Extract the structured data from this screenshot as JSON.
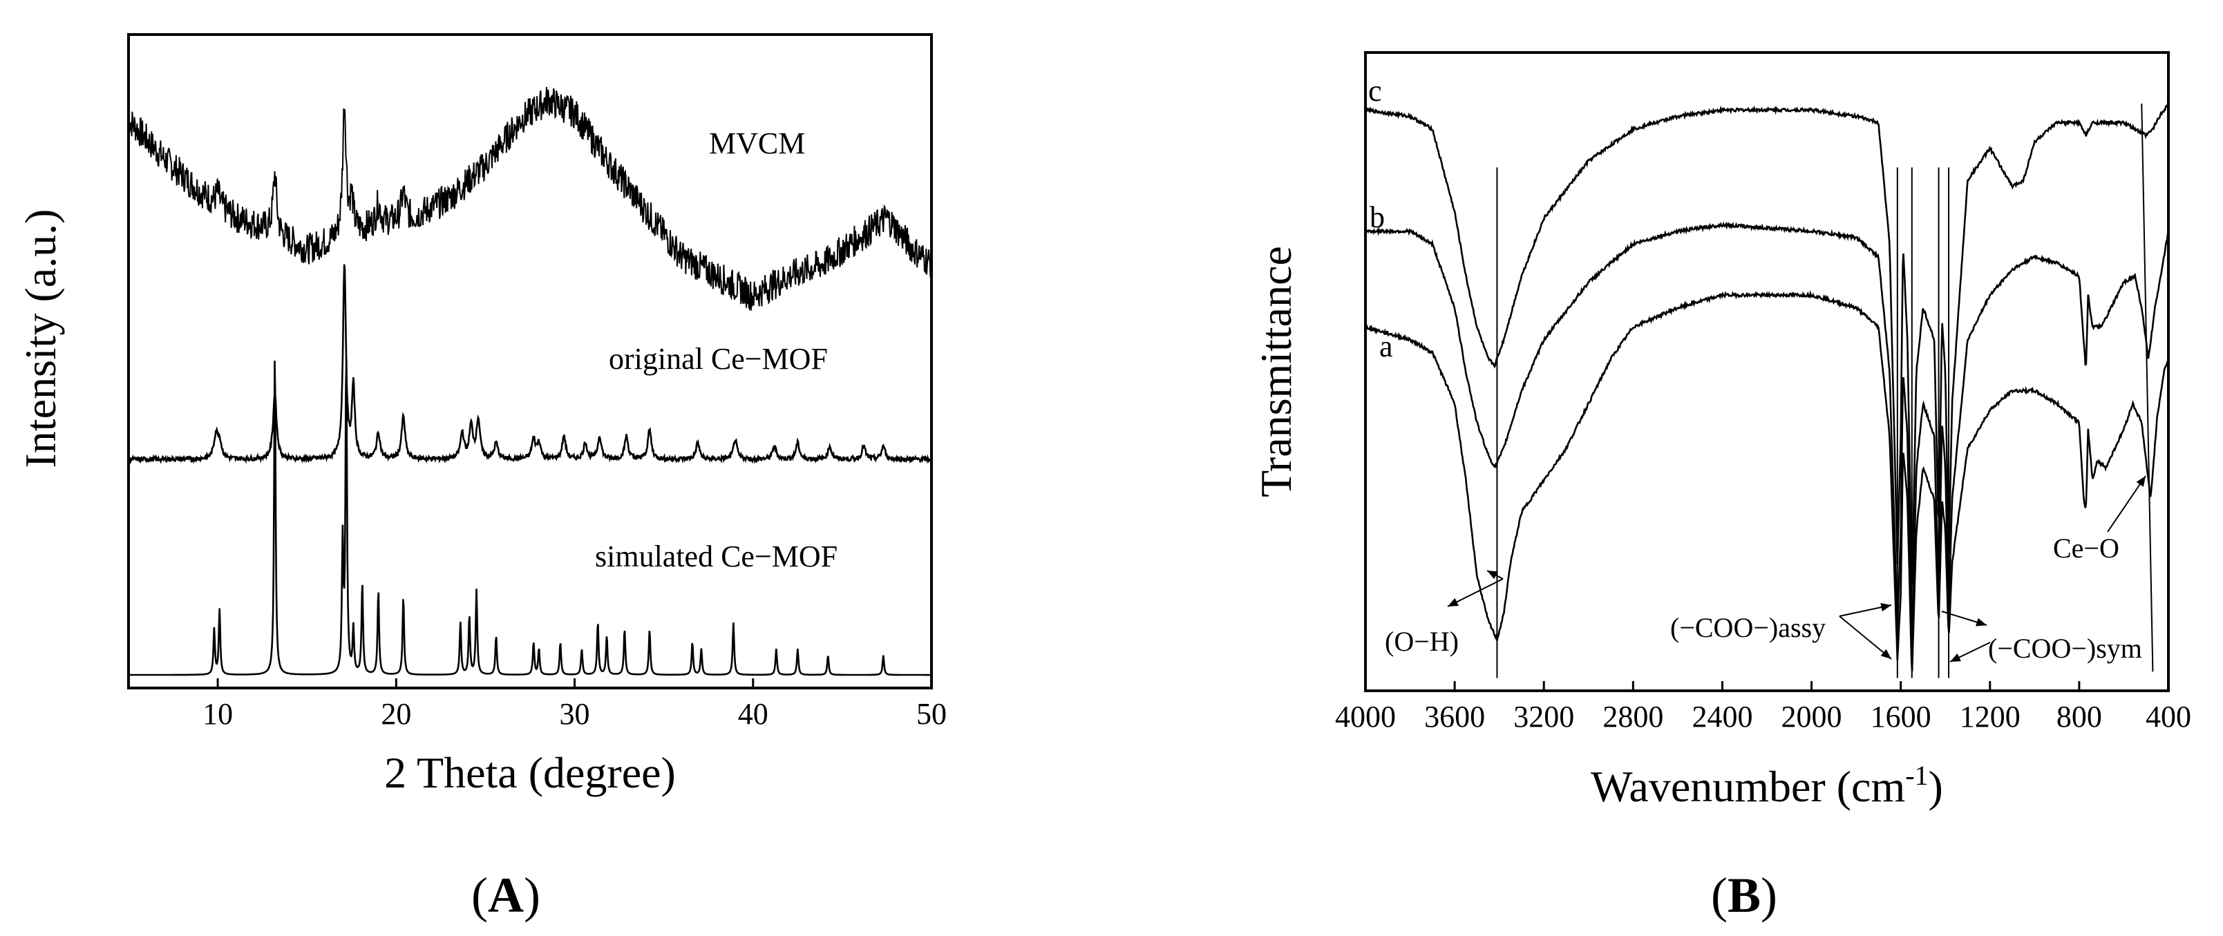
{
  "chart_data": [
    {
      "panel": "A",
      "type": "line",
      "title": "",
      "xlabel": "2 Theta (degree)",
      "ylabel": "Intensity (a.u.)",
      "xlim": [
        5,
        50
      ],
      "xticks": [
        10,
        20,
        30,
        40,
        50
      ],
      "ylim": [
        0,
        100
      ],
      "yticks_shown": false,
      "series": [
        {
          "name": "MVCM",
          "label": "MVCM",
          "noise": 2.4,
          "baseline": [
            [
              5,
              87
            ],
            [
              7,
              81
            ],
            [
              9,
              76
            ],
            [
              11,
              72
            ],
            [
              13,
              70
            ],
            [
              15,
              67
            ],
            [
              17,
              69
            ],
            [
              19,
              71
            ],
            [
              21,
              72
            ],
            [
              23,
              75
            ],
            [
              25,
              80
            ],
            [
              27,
              87
            ],
            [
              28.5,
              90
            ],
            [
              30,
              88
            ],
            [
              32,
              80
            ],
            [
              34,
              73
            ],
            [
              36,
              66
            ],
            [
              38,
              63
            ],
            [
              40,
              60
            ],
            [
              42,
              63
            ],
            [
              44,
              65
            ],
            [
              46,
              69
            ],
            [
              47.5,
              72
            ],
            [
              49,
              67
            ],
            [
              50,
              65
            ]
          ],
          "peaks": [
            [
              10,
              2,
              0.12
            ],
            [
              13.2,
              9,
              0.12
            ],
            [
              17.1,
              20,
              0.12
            ],
            [
              17.5,
              5,
              0.12
            ],
            [
              19.0,
              3,
              0.15
            ],
            [
              20.4,
              4,
              0.15
            ]
          ]
        },
        {
          "name": "original Ce-MOF",
          "label": "original Ce−MOF",
          "noise": 0.35,
          "baseline": [
            [
              5,
              35
            ],
            [
              50,
              35
            ]
          ],
          "peaks": [
            [
              9.9,
              3.5,
              0.14
            ],
            [
              10.1,
              2.5,
              0.14
            ],
            [
              13.2,
              10,
              0.12
            ],
            [
              17.1,
              30,
              0.1
            ],
            [
              17.6,
              11,
              0.1
            ],
            [
              19.0,
              4,
              0.12
            ],
            [
              20.4,
              6.5,
              0.12
            ],
            [
              23.7,
              4,
              0.12
            ],
            [
              24.2,
              5,
              0.12
            ],
            [
              24.6,
              6,
              0.12
            ],
            [
              25.6,
              2.5,
              0.12
            ],
            [
              27.7,
              3,
              0.12
            ],
            [
              28.0,
              2.5,
              0.12
            ],
            [
              29.4,
              3.5,
              0.12
            ],
            [
              30.6,
              2.5,
              0.12
            ],
            [
              31.4,
              3.5,
              0.12
            ],
            [
              32.9,
              3.5,
              0.12
            ],
            [
              34.2,
              4.5,
              0.12
            ],
            [
              36.9,
              2.5,
              0.12
            ],
            [
              39.0,
              3,
              0.12
            ],
            [
              41.2,
              2,
              0.12
            ],
            [
              42.5,
              2.5,
              0.12
            ],
            [
              44.3,
              2,
              0.12
            ],
            [
              46.2,
              2,
              0.12
            ],
            [
              47.3,
              2,
              0.12
            ]
          ]
        },
        {
          "name": "simulated Ce-MOF",
          "label": "simulated Ce−MOF",
          "noise": 0,
          "baseline": [
            [
              5,
              2
            ],
            [
              50,
              2
            ]
          ],
          "peaks": [
            [
              9.8,
              7,
              0.05
            ],
            [
              10.1,
              10,
              0.05
            ],
            [
              13.2,
              50,
              0.05
            ],
            [
              17.0,
              20,
              0.05
            ],
            [
              17.2,
              49,
              0.05
            ],
            [
              17.6,
              7,
              0.05
            ],
            [
              18.1,
              14,
              0.05
            ],
            [
              19.0,
              13,
              0.05
            ],
            [
              20.4,
              12,
              0.05
            ],
            [
              23.6,
              8,
              0.05
            ],
            [
              24.1,
              9,
              0.05
            ],
            [
              24.5,
              13,
              0.05
            ],
            [
              25.6,
              6,
              0.05
            ],
            [
              27.7,
              5,
              0.05
            ],
            [
              28.0,
              4,
              0.05
            ],
            [
              29.2,
              5,
              0.05
            ],
            [
              30.4,
              4,
              0.05
            ],
            [
              31.3,
              8,
              0.05
            ],
            [
              31.8,
              6,
              0.05
            ],
            [
              32.8,
              7,
              0.05
            ],
            [
              34.2,
              7,
              0.05
            ],
            [
              36.6,
              5,
              0.05
            ],
            [
              37.1,
              4,
              0.05
            ],
            [
              38.9,
              8,
              0.05
            ],
            [
              41.3,
              4,
              0.05
            ],
            [
              42.5,
              4,
              0.05
            ],
            [
              44.2,
              3,
              0.05
            ],
            [
              47.3,
              3,
              0.05
            ]
          ]
        }
      ]
    },
    {
      "panel": "B",
      "type": "line",
      "title": "",
      "xlabel": "Wavenumber (cm",
      "xlabel_sup": "-1",
      "xlabel_end": ")",
      "ylabel": "Transmittance",
      "xlim": [
        4000,
        400
      ],
      "xticks": [
        4000,
        3600,
        3200,
        2800,
        2400,
        2000,
        1600,
        1200,
        800,
        400
      ],
      "ylim": [
        0,
        100
      ],
      "yticks_shown": false,
      "series": [
        {
          "name": "a",
          "label": "a",
          "points": [
            [
              4000,
              57
            ],
            [
              3800,
              55
            ],
            [
              3700,
              53
            ],
            [
              3600,
              45
            ],
            [
              3550,
              33
            ],
            [
              3500,
              18
            ],
            [
              3450,
              11
            ],
            [
              3410,
              8
            ],
            [
              3380,
              12
            ],
            [
              3350,
              20
            ],
            [
              3300,
              28
            ],
            [
              3200,
              33
            ],
            [
              3100,
              38
            ],
            [
              3000,
              45
            ],
            [
              2900,
              52
            ],
            [
              2800,
              57
            ],
            [
              2600,
              60
            ],
            [
              2400,
              62
            ],
            [
              2000,
              62
            ],
            [
              1800,
              60
            ],
            [
              1700,
              57
            ],
            [
              1650,
              40
            ],
            [
              1615,
              5
            ],
            [
              1600,
              15
            ],
            [
              1590,
              38
            ],
            [
              1570,
              30
            ],
            [
              1550,
              2
            ],
            [
              1530,
              25
            ],
            [
              1500,
              35
            ],
            [
              1450,
              30
            ],
            [
              1430,
              10
            ],
            [
              1415,
              30
            ],
            [
              1400,
              25
            ],
            [
              1385,
              8
            ],
            [
              1370,
              20
            ],
            [
              1300,
              38
            ],
            [
              1200,
              44
            ],
            [
              1100,
              47
            ],
            [
              1000,
              47
            ],
            [
              900,
              45
            ],
            [
              800,
              42
            ],
            [
              780,
              30
            ],
            [
              770,
              28
            ],
            [
              760,
              41
            ],
            [
              740,
              33
            ],
            [
              720,
              36
            ],
            [
              680,
              35
            ],
            [
              600,
              41
            ],
            [
              560,
              45
            ],
            [
              520,
              42
            ],
            [
              480,
              30
            ],
            [
              450,
              43
            ],
            [
              420,
              50
            ],
            [
              400,
              52
            ]
          ]
        },
        {
          "name": "b",
          "label": "b",
          "points": [
            [
              4000,
              72
            ],
            [
              3800,
              72
            ],
            [
              3700,
              70
            ],
            [
              3600,
              60
            ],
            [
              3550,
              50
            ],
            [
              3500,
              42
            ],
            [
              3450,
              37
            ],
            [
              3420,
              35
            ],
            [
              3380,
              38
            ],
            [
              3300,
              47
            ],
            [
              3200,
              55
            ],
            [
              3000,
              64
            ],
            [
              2800,
              70
            ],
            [
              2600,
              72
            ],
            [
              2400,
              73
            ],
            [
              2000,
              72
            ],
            [
              1800,
              71
            ],
            [
              1700,
              68
            ],
            [
              1650,
              50
            ],
            [
              1615,
              10
            ],
            [
              1600,
              25
            ],
            [
              1590,
              50
            ],
            [
              1570,
              40
            ],
            [
              1550,
              5
            ],
            [
              1530,
              35
            ],
            [
              1500,
              45
            ],
            [
              1450,
              40
            ],
            [
              1430,
              15
            ],
            [
              1415,
              42
            ],
            [
              1400,
              35
            ],
            [
              1385,
              12
            ],
            [
              1370,
              30
            ],
            [
              1300,
              55
            ],
            [
              1200,
              62
            ],
            [
              1100,
              66
            ],
            [
              1000,
              68
            ],
            [
              900,
              67
            ],
            [
              800,
              65
            ],
            [
              780,
              55
            ],
            [
              770,
              50
            ],
            [
              760,
              62
            ],
            [
              740,
              57
            ],
            [
              700,
              57
            ],
            [
              600,
              64
            ],
            [
              550,
              65
            ],
            [
              520,
              60
            ],
            [
              490,
              52
            ],
            [
              460,
              60
            ],
            [
              420,
              68
            ],
            [
              400,
              72
            ]
          ]
        },
        {
          "name": "c",
          "label": "c",
          "points": [
            [
              4000,
              91
            ],
            [
              3800,
              90
            ],
            [
              3700,
              88
            ],
            [
              3600,
              75
            ],
            [
              3550,
              65
            ],
            [
              3500,
              57
            ],
            [
              3450,
              52
            ],
            [
              3420,
              51
            ],
            [
              3380,
              55
            ],
            [
              3300,
              65
            ],
            [
              3200,
              74
            ],
            [
              3000,
              83
            ],
            [
              2800,
              88
            ],
            [
              2600,
              90
            ],
            [
              2400,
              91
            ],
            [
              2000,
              91
            ],
            [
              1800,
              90
            ],
            [
              1700,
              89
            ],
            [
              1650,
              70
            ],
            [
              1615,
              20
            ],
            [
              1600,
              40
            ],
            [
              1590,
              70
            ],
            [
              1570,
              55
            ],
            [
              1550,
              15
            ],
            [
              1530,
              50
            ],
            [
              1500,
              60
            ],
            [
              1450,
              55
            ],
            [
              1430,
              25
            ],
            [
              1415,
              58
            ],
            [
              1400,
              50
            ],
            [
              1385,
              20
            ],
            [
              1370,
              45
            ],
            [
              1300,
              80
            ],
            [
              1200,
              85
            ],
            [
              1150,
              82
            ],
            [
              1100,
              79
            ],
            [
              1050,
              80
            ],
            [
              1000,
              86
            ],
            [
              900,
              89
            ],
            [
              800,
              89
            ],
            [
              770,
              87
            ],
            [
              740,
              89
            ],
            [
              600,
              89
            ],
            [
              500,
              87
            ],
            [
              470,
              88
            ],
            [
              440,
              90
            ],
            [
              400,
              92
            ]
          ]
        }
      ],
      "annotations": [
        {
          "text": "(O−H)"
        },
        {
          "text": "(−COO−)assy"
        },
        {
          "text": "(−COO−)sym"
        },
        {
          "text": "Ce−O"
        }
      ]
    }
  ],
  "panels": [
    {
      "label": "(",
      "letter": "A",
      "close": ")"
    },
    {
      "label": "(",
      "letter": "B",
      "close": ")"
    }
  ]
}
